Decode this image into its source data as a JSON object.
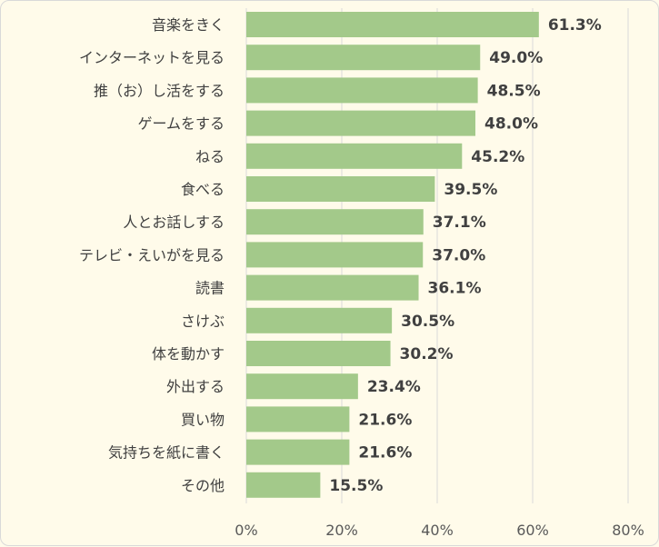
{
  "colors": {
    "bar": "#a3c98a",
    "grid": "#d9d9d9",
    "background": "#fffbea",
    "text": "#404040"
  },
  "chart_data": {
    "type": "bar",
    "orientation": "horizontal",
    "categories": [
      "音楽をきく",
      "インターネットを見る",
      "推（お）し活をする",
      "ゲームをする",
      "ねる",
      "食べる",
      "人とお話しする",
      "テレビ・えいがを見る",
      "読書",
      "さけぶ",
      "体を動かす",
      "外出する",
      "買い物",
      "気持ちを紙に書く",
      "その他"
    ],
    "values": [
      61.3,
      49.0,
      48.5,
      48.0,
      45.2,
      39.5,
      37.1,
      37.0,
      36.1,
      30.5,
      30.2,
      23.4,
      21.6,
      21.6,
      15.5
    ],
    "value_labels": [
      "61.3%",
      "49.0%",
      "48.5%",
      "48.0%",
      "45.2%",
      "39.5%",
      "37.1%",
      "37.0%",
      "36.1%",
      "30.5%",
      "30.2%",
      "23.4%",
      "21.6%",
      "21.6%",
      "15.5%"
    ],
    "xlim": [
      0,
      80
    ],
    "x_ticks": [
      0,
      20,
      40,
      60,
      80
    ],
    "x_tick_labels": [
      "0%",
      "20%",
      "40%",
      "60%",
      "80%"
    ],
    "grid": true,
    "legend": false
  }
}
